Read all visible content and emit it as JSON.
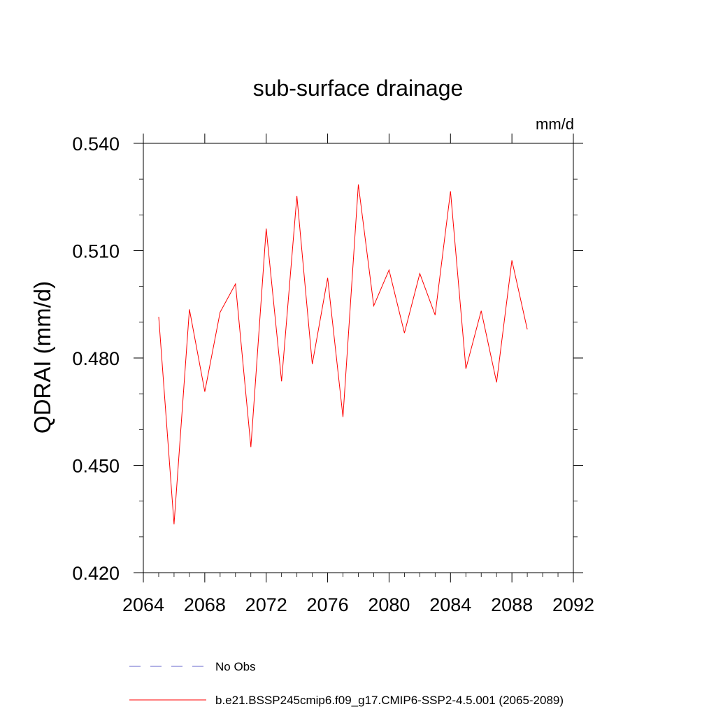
{
  "chart_data": {
    "type": "line",
    "title": "sub-surface drainage",
    "units_label": "mm/d",
    "ylabel": "QDRAI  (mm/d)",
    "xlabel": "",
    "xlim": [
      2064,
      2092
    ],
    "ylim": [
      0.42,
      0.54
    ],
    "xticks": [
      2064,
      2068,
      2072,
      2076,
      2080,
      2084,
      2088,
      2092
    ],
    "xtick_labels": [
      "2064",
      "2068",
      "2072",
      "2076",
      "2080",
      "2084",
      "2088",
      "2092"
    ],
    "yticks": [
      0.42,
      0.45,
      0.48,
      0.51,
      0.54
    ],
    "ytick_labels": [
      "0.420",
      "0.450",
      "0.480",
      "0.510",
      "0.540"
    ],
    "grid": false,
    "series": [
      {
        "name": "b.e21.BSSP245cmip6.f09_g17.CMIP6-SSP2-4.5.001 (2065-2089)",
        "color": "#ff0000",
        "x": [
          2065,
          2066,
          2067,
          2068,
          2069,
          2070,
          2071,
          2072,
          2073,
          2074,
          2075,
          2076,
          2077,
          2078,
          2079,
          2080,
          2081,
          2082,
          2083,
          2084,
          2085,
          2086,
          2087,
          2088,
          2089
        ],
        "y": [
          0.4915,
          0.4335,
          0.4936,
          0.4706,
          0.4928,
          0.5007,
          0.4551,
          0.5162,
          0.4735,
          0.5253,
          0.4783,
          0.5024,
          0.4635,
          0.5285,
          0.4946,
          0.5046,
          0.487,
          0.5036,
          0.492,
          0.5266,
          0.477,
          0.4932,
          0.4732,
          0.5073,
          0.488
        ]
      }
    ],
    "legend": [
      {
        "label": "No Obs",
        "color": "#6666cc",
        "style": "dashed"
      },
      {
        "label": "b.e21.BSSP245cmip6.f09_g17.CMIP6-SSP2-4.5.001 (2065-2089)",
        "color": "#ff0000",
        "style": "solid"
      }
    ]
  }
}
